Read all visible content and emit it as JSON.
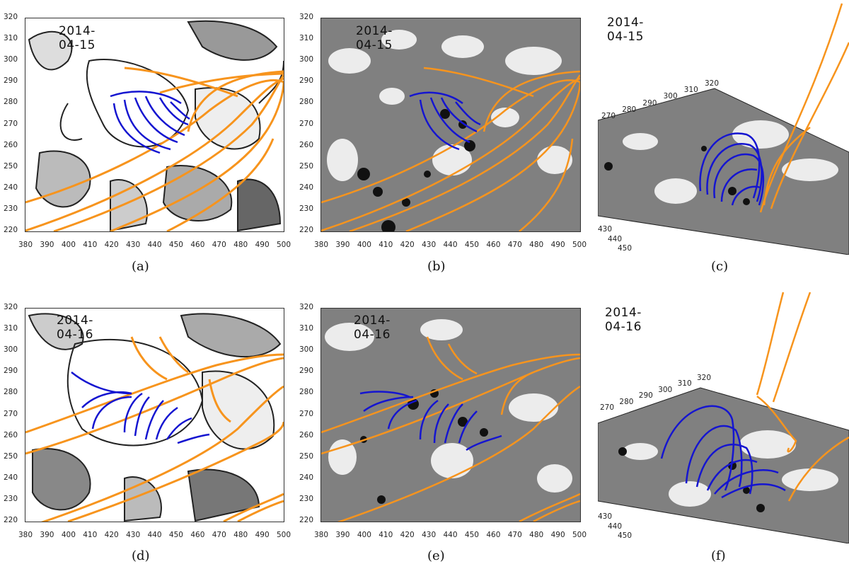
{
  "panels": {
    "a": {
      "date": "2014-04-15",
      "caption": "(a)"
    },
    "b": {
      "date": "2014-04-15",
      "caption": "(b)"
    },
    "c": {
      "date": "2014-04-15",
      "caption": "(c)"
    },
    "d": {
      "date": "2014-04-16",
      "caption": "(d)"
    },
    "e": {
      "date": "2014-04-16",
      "caption": "(e)"
    },
    "f": {
      "date": "2014-04-16",
      "caption": "(f)"
    }
  },
  "axes": {
    "x_ticks": [
      "380",
      "390",
      "400",
      "410",
      "420",
      "430",
      "440",
      "450",
      "460",
      "470",
      "480",
      "490",
      "500"
    ],
    "y_ticks": [
      "320",
      "310",
      "300",
      "290",
      "280",
      "270",
      "260",
      "250",
      "240",
      "230",
      "220"
    ],
    "persp_top_ticks_c": [
      "270",
      "280",
      "290",
      "300",
      "310",
      "320"
    ],
    "persp_top_ticks_f": [
      "270",
      "280",
      "290",
      "300",
      "310",
      "320"
    ],
    "persp_side_ticks": [
      "430",
      "440",
      "450"
    ]
  },
  "colors": {
    "open_field_lines": "#f7941d",
    "closed_field_lines": "#1515d0",
    "magnetogram_bg": "#808080"
  }
}
